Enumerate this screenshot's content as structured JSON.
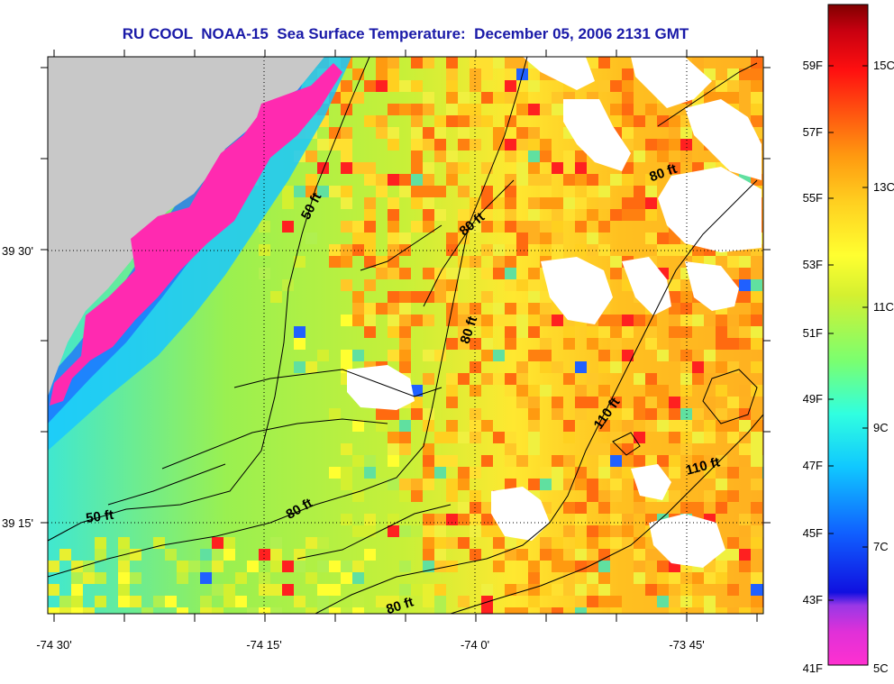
{
  "title": "RU COOL  NOAA-15  Sea Surface Temperature:  December 05, 2006 2131 GMT",
  "axes": {
    "x_ticks": [
      {
        "label": "-74 30'",
        "lon": -74.5
      },
      {
        "label": "-74 15'",
        "lon": -74.25
      },
      {
        "label": "-74 0'",
        "lon": -74.0
      },
      {
        "label": "-73 45'",
        "lon": -73.75
      }
    ],
    "y_ticks": [
      {
        "label": "39 30'",
        "lat": 39.5
      },
      {
        "label": "39 15'",
        "lat": 39.25
      }
    ],
    "lon_range": [
      -74.5,
      -73.67
    ],
    "lat_range": [
      39.16,
      39.69
    ]
  },
  "depth_contour_labels": [
    {
      "text": "50 ft"
    },
    {
      "text": "50 ft"
    },
    {
      "text": "80 ft"
    },
    {
      "text": "80 ft"
    },
    {
      "text": "80 ft"
    },
    {
      "text": "80 ft"
    },
    {
      "text": "80 ft"
    },
    {
      "text": "110 ft"
    },
    {
      "text": "110 ft"
    }
  ],
  "colorbar": {
    "fahrenheit_labels": [
      "59F",
      "57F",
      "55F",
      "53F",
      "51F",
      "49F",
      "47F",
      "45F",
      "43F",
      "41F"
    ],
    "celsius_labels": [
      "15C",
      "13C",
      "11C",
      "9C",
      "7C",
      "5C"
    ],
    "range_c": [
      5,
      16.1
    ],
    "stops": [
      "#ff30d0",
      "#9a38e6",
      "#1010e0",
      "#1060ff",
      "#10c8ff",
      "#30ffe0",
      "#7aff70",
      "#d4f030",
      "#ffff30",
      "#ffd020",
      "#ff9a10",
      "#ff5010",
      "#ff1010",
      "#e00010",
      "#b00010",
      "#800000"
    ]
  },
  "colors": {
    "land": "#c8c8c8",
    "coast_pink": "#ff2ab0",
    "contour": "#000000",
    "no_data": "#ffffff"
  }
}
